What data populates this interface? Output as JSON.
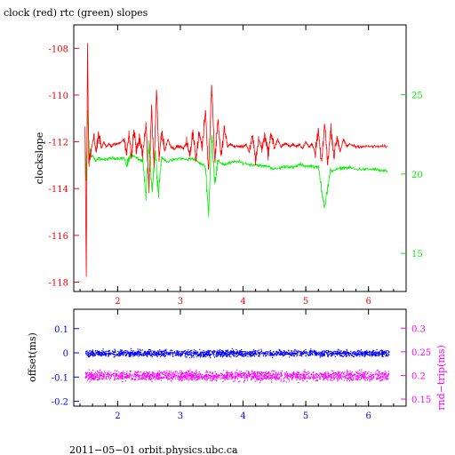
{
  "chart_data": [
    {
      "type": "line",
      "title": "clock (red) rtc (green) slopes",
      "ylabel": "clockslope",
      "xlim": [
        1.3,
        6.6
      ],
      "ylim": [
        -118.4,
        -107.0
      ],
      "y2lim": [
        12.6,
        29.4
      ],
      "x_ticks": [
        "2",
        "3",
        "4",
        "5",
        "6"
      ],
      "x_tick_values": [
        2,
        3,
        4,
        5,
        6
      ],
      "y_ticks": [
        "-108",
        "-110",
        "-112",
        "-114",
        "-116",
        "-118"
      ],
      "y_tick_values": [
        -108,
        -110,
        -112,
        -114,
        -116,
        -118
      ],
      "y2_ticks": [
        "25",
        "20",
        "15"
      ],
      "y2_tick_values": [
        25,
        20,
        15
      ],
      "grid": false,
      "colors": {
        "clock": "#ff0000",
        "rtc": "#00ee00",
        "left_axis": "#ff0000",
        "right_axis": "#00ee00"
      },
      "series_clock": {
        "x": [
          1.48,
          1.5,
          1.52,
          1.54,
          1.58,
          1.62,
          1.66,
          1.7,
          1.74,
          1.78,
          1.82,
          1.86,
          1.9,
          1.94,
          2.0,
          2.05,
          2.1,
          2.14,
          2.18,
          2.22,
          2.26,
          2.3,
          2.35,
          2.4,
          2.45,
          2.5,
          2.54,
          2.58,
          2.62,
          2.66,
          2.7,
          2.75,
          2.8,
          2.85,
          2.9,
          2.95,
          3.0,
          3.05,
          3.1,
          3.15,
          3.2,
          3.25,
          3.3,
          3.35,
          3.4,
          3.45,
          3.5,
          3.55,
          3.6,
          3.65,
          3.7,
          3.75,
          3.8,
          3.85,
          3.9,
          3.95,
          4.0,
          4.05,
          4.1,
          4.15,
          4.2,
          4.25,
          4.3,
          4.35,
          4.4,
          4.45,
          4.5,
          4.55,
          4.6,
          4.65,
          4.7,
          4.75,
          4.8,
          4.85,
          4.9,
          4.95,
          5.0,
          5.05,
          5.1,
          5.15,
          5.2,
          5.25,
          5.3,
          5.35,
          5.4,
          5.45,
          5.5,
          5.55,
          5.6,
          5.65,
          5.7,
          5.8,
          5.9,
          6.0,
          6.1,
          6.2,
          6.3
        ],
        "y": [
          -111.5,
          -117.8,
          -107.8,
          -113.0,
          -112.3,
          -111.8,
          -112.4,
          -111.7,
          -112.3,
          -112.0,
          -112.2,
          -112.1,
          -112.2,
          -112.1,
          -112.1,
          -112.0,
          -111.9,
          -112.5,
          -111.6,
          -112.7,
          -111.5,
          -112.4,
          -111.8,
          -112.6,
          -111.2,
          -114.0,
          -110.5,
          -113.1,
          -109.8,
          -112.8,
          -111.5,
          -112.4,
          -111.9,
          -112.2,
          -112.3,
          -112.2,
          -112.2,
          -112.3,
          -112.0,
          -112.6,
          -111.5,
          -112.8,
          -111.6,
          -112.2,
          -110.6,
          -113.3,
          -109.5,
          -112.9,
          -111.0,
          -112.7,
          -111.4,
          -112.2,
          -112.1,
          -112.2,
          -112.2,
          -112.2,
          -112.2,
          -112.1,
          -112.5,
          -111.7,
          -112.8,
          -111.9,
          -112.3,
          -111.7,
          -112.5,
          -111.6,
          -112.3,
          -111.9,
          -112.2,
          -112.1,
          -112.1,
          -112.2,
          -112.1,
          -112.2,
          -112.1,
          -112.3,
          -112.0,
          -112.2,
          -112.1,
          -112.5,
          -111.5,
          -113.0,
          -111.2,
          -112.9,
          -111.4,
          -112.6,
          -111.8,
          -112.4,
          -111.9,
          -112.2,
          -112.1,
          -112.2,
          -112.2,
          -112.2,
          -112.2,
          -112.2,
          -112.2
        ]
      },
      "series_rtc": {
        "x": [
          1.48,
          1.5,
          1.52,
          1.55,
          1.6,
          1.65,
          1.7,
          1.8,
          1.9,
          2.0,
          2.1,
          2.15,
          2.2,
          2.3,
          2.4,
          2.45,
          2.5,
          2.55,
          2.6,
          2.65,
          2.7,
          2.8,
          2.9,
          3.0,
          3.1,
          3.2,
          3.3,
          3.4,
          3.45,
          3.5,
          3.55,
          3.6,
          3.7,
          3.8,
          3.9,
          4.0,
          4.1,
          4.2,
          4.3,
          4.4,
          4.5,
          4.6,
          4.7,
          4.8,
          4.9,
          5.0,
          5.1,
          5.2,
          5.3,
          5.4,
          5.5,
          5.6,
          5.7,
          5.8,
          5.9,
          6.0,
          6.1,
          6.2,
          6.3
        ],
        "y": [
          22.5,
          19.5,
          24.0,
          21.0,
          21.2,
          20.8,
          21.0,
          20.9,
          21.0,
          21.0,
          21.0,
          20.5,
          21.3,
          21.0,
          20.8,
          18.5,
          22.0,
          19.0,
          21.5,
          18.8,
          21.0,
          20.8,
          20.9,
          21.0,
          20.9,
          21.0,
          20.7,
          20.5,
          17.5,
          22.5,
          19.5,
          20.8,
          20.6,
          20.7,
          20.8,
          20.7,
          20.6,
          20.6,
          20.5,
          20.5,
          20.3,
          20.4,
          20.5,
          20.4,
          20.6,
          20.5,
          20.5,
          20.4,
          18.0,
          20.2,
          20.3,
          20.4,
          20.4,
          20.3,
          20.3,
          20.3,
          20.3,
          20.2,
          20.2
        ]
      }
    },
    {
      "type": "scatter",
      "ylabel": "offset(ms)",
      "y2label": "rnd−trip(ms)",
      "xlim": [
        1.3,
        6.6
      ],
      "ylim": [
        -0.22,
        0.18
      ],
      "y2lim": [
        0.135,
        0.34
      ],
      "x_ticks": [
        "2",
        "3",
        "4",
        "5",
        "6"
      ],
      "x_tick_values": [
        2,
        3,
        4,
        5,
        6
      ],
      "y_ticks": [
        "0.1",
        "0",
        "-0.1",
        "-0.2"
      ],
      "y_tick_values": [
        0.1,
        0,
        -0.1,
        -0.2
      ],
      "y2_ticks": [
        "0.3",
        "0.25",
        "0.2",
        "0.15"
      ],
      "y2_tick_values": [
        0.3,
        0.25,
        0.2,
        0.15
      ],
      "grid": false,
      "colors": {
        "offset": "#0000ff",
        "rndtrip": "#ff00ff",
        "left_axis": "#0000ff",
        "right_axis": "#ff00ff"
      },
      "offset_band": {
        "x_start": 1.48,
        "x_end": 6.32,
        "center": 0.0,
        "spread": 0.02
      },
      "rndtrip_band": {
        "x_start": 1.48,
        "x_end": 6.32,
        "center": 0.2,
        "spread": 0.015
      }
    }
  ],
  "footer": "2011−05−01 orbit.physics.ubc.ca"
}
